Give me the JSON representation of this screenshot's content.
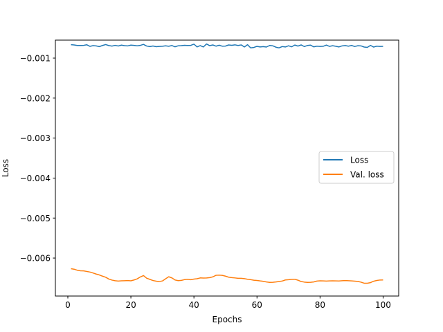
{
  "chart_data": {
    "type": "line",
    "title": "",
    "xlabel": "Epochs",
    "ylabel": "Loss",
    "xlim": [
      -3.95,
      104.95
    ],
    "ylim": [
      -0.00695,
      -0.00055
    ],
    "xticks": [
      0,
      20,
      40,
      60,
      80,
      100
    ],
    "yticks": [
      -0.006,
      -0.005,
      -0.004,
      -0.003,
      -0.002,
      -0.001
    ],
    "xtick_labels": [
      "0",
      "20",
      "40",
      "60",
      "80",
      "100"
    ],
    "ytick_labels": [
      "−0.006",
      "−0.005",
      "−0.004",
      "−0.003",
      "−0.002",
      "−0.001"
    ],
    "grid": false,
    "legend_position": "center-right",
    "series": [
      {
        "name": "Loss",
        "color": "#1f77b4",
        "x": [
          1,
          2,
          3,
          4,
          5,
          6,
          7,
          8,
          9,
          10,
          11,
          12,
          13,
          14,
          15,
          16,
          17,
          18,
          19,
          20,
          21,
          22,
          23,
          24,
          25,
          26,
          27,
          28,
          29,
          30,
          31,
          32,
          33,
          34,
          35,
          36,
          37,
          38,
          39,
          40,
          41,
          42,
          43,
          44,
          45,
          46,
          47,
          48,
          49,
          50,
          51,
          52,
          53,
          54,
          55,
          56,
          57,
          58,
          59,
          60,
          61,
          62,
          63,
          64,
          65,
          66,
          67,
          68,
          69,
          70,
          71,
          72,
          73,
          74,
          75,
          76,
          77,
          78,
          79,
          80,
          81,
          82,
          83,
          84,
          85,
          86,
          87,
          88,
          89,
          90,
          91,
          92,
          93,
          94,
          95,
          96,
          97,
          98,
          99,
          100
        ],
        "y": [
          -0.000665,
          -0.000671,
          -0.000685,
          -0.000683,
          -0.000681,
          -0.000666,
          -0.000705,
          -0.000688,
          -0.000695,
          -0.000712,
          -0.000684,
          -0.000661,
          -0.000686,
          -0.000699,
          -0.000681,
          -0.000697,
          -0.000675,
          -0.000689,
          -0.000694,
          -0.000676,
          -0.000682,
          -0.000692,
          -0.000681,
          -0.000657,
          -0.000698,
          -0.000712,
          -0.000697,
          -0.000714,
          -0.000707,
          -0.000703,
          -0.000692,
          -0.000703,
          -0.000686,
          -0.000717,
          -0.000692,
          -0.000689,
          -0.000679,
          -0.000683,
          -0.000681,
          -0.000651,
          -0.000719,
          -0.000688,
          -0.000721,
          -0.000646,
          -0.000689,
          -0.000671,
          -0.000701,
          -0.000678,
          -0.000702,
          -0.000699,
          -0.000671,
          -0.000679,
          -0.000668,
          -0.000684,
          -0.00067,
          -0.000721,
          -0.000664,
          -0.000745,
          -0.000733,
          -0.000706,
          -0.000721,
          -0.000713,
          -0.000723,
          -0.000684,
          -0.000692,
          -0.000727,
          -0.000744,
          -0.000711,
          -0.000721,
          -0.000691,
          -0.000717,
          -0.000673,
          -0.000699,
          -0.00067,
          -0.00071,
          -0.000685,
          -0.000676,
          -0.000718,
          -0.000701,
          -0.000707,
          -0.000704,
          -0.000674,
          -0.000706,
          -0.00069,
          -0.000704,
          -0.00072,
          -0.000694,
          -0.000686,
          -0.000702,
          -0.000684,
          -0.000709,
          -0.000691,
          -0.000694,
          -0.000723,
          -0.000731,
          -0.000682,
          -0.000724,
          -0.000701,
          -0.000708,
          -0.000705
        ]
      },
      {
        "name": "Val. loss",
        "color": "#ff7f0e",
        "x": [
          1,
          2,
          3,
          4,
          5,
          6,
          7,
          8,
          9,
          10,
          11,
          12,
          13,
          14,
          15,
          16,
          17,
          18,
          19,
          20,
          21,
          22,
          23,
          24,
          25,
          26,
          27,
          28,
          29,
          30,
          31,
          32,
          33,
          34,
          35,
          36,
          37,
          38,
          39,
          40,
          41,
          42,
          43,
          44,
          45,
          46,
          47,
          48,
          49,
          50,
          51,
          52,
          53,
          54,
          55,
          56,
          57,
          58,
          59,
          60,
          61,
          62,
          63,
          64,
          65,
          66,
          67,
          68,
          69,
          70,
          71,
          72,
          73,
          74,
          75,
          76,
          77,
          78,
          79,
          80,
          81,
          82,
          83,
          84,
          85,
          86,
          87,
          88,
          89,
          90,
          91,
          92,
          93,
          94,
          95,
          96,
          97,
          98,
          99,
          100
        ],
        "y": [
          -0.006266,
          -0.006279,
          -0.006305,
          -0.006318,
          -0.00632,
          -0.006335,
          -0.00635,
          -0.006374,
          -0.006401,
          -0.006423,
          -0.006453,
          -0.00648,
          -0.006525,
          -0.006551,
          -0.006567,
          -0.006576,
          -0.00657,
          -0.006567,
          -0.006564,
          -0.006569,
          -0.006548,
          -0.006521,
          -0.006473,
          -0.006438,
          -0.006504,
          -0.006533,
          -0.006562,
          -0.006578,
          -0.006588,
          -0.006573,
          -0.006519,
          -0.006468,
          -0.006496,
          -0.006548,
          -0.006565,
          -0.006558,
          -0.00654,
          -0.006531,
          -0.006542,
          -0.006526,
          -0.006518,
          -0.006497,
          -0.006501,
          -0.006498,
          -0.006489,
          -0.00647,
          -0.006432,
          -0.006427,
          -0.006433,
          -0.006452,
          -0.006479,
          -0.006489,
          -0.006497,
          -0.006506,
          -0.006506,
          -0.006516,
          -0.006531,
          -0.00654,
          -0.006555,
          -0.00656,
          -0.006572,
          -0.006582,
          -0.006598,
          -0.006608,
          -0.006606,
          -0.006598,
          -0.006587,
          -0.006575,
          -0.006548,
          -0.006541,
          -0.006532,
          -0.00653,
          -0.006554,
          -0.006587,
          -0.006601,
          -0.006609,
          -0.006607,
          -0.006597,
          -0.006576,
          -0.00657,
          -0.006572,
          -0.006575,
          -0.006571,
          -0.00657,
          -0.006572,
          -0.006573,
          -0.006567,
          -0.006563,
          -0.006567,
          -0.006572,
          -0.006578,
          -0.006584,
          -0.006603,
          -0.006629,
          -0.00663,
          -0.006614,
          -0.00658,
          -0.006561,
          -0.006549,
          -0.006548
        ]
      }
    ]
  }
}
